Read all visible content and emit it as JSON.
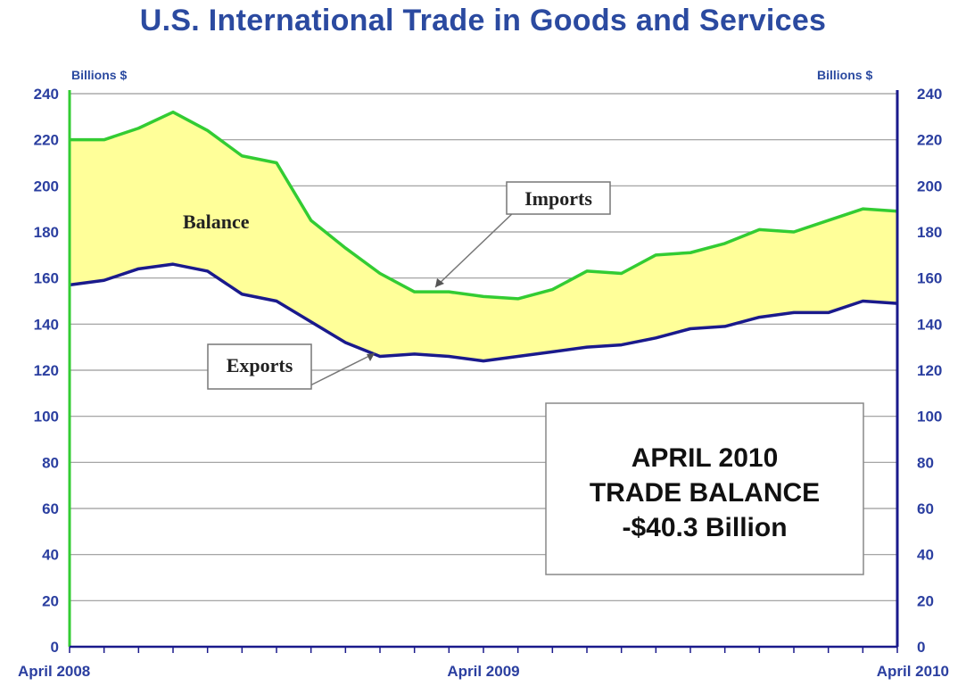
{
  "chart_data": {
    "type": "area",
    "title": "U.S. International Trade in Goods and Services",
    "y_unit_left": "Billions $",
    "y_unit_right": "Billions $",
    "ylim": [
      0,
      240
    ],
    "yticks": [
      "0",
      "20",
      "40",
      "60",
      "80",
      "100",
      "120",
      "140",
      "160",
      "180",
      "200",
      "220",
      "240"
    ],
    "x_tick_labels": [
      "April 2008",
      "April 2009",
      "April 2010"
    ],
    "x": [
      "Apr 2008",
      "May 2008",
      "Jun 2008",
      "Jul 2008",
      "Aug 2008",
      "Sep 2008",
      "Oct 2008",
      "Nov 2008",
      "Dec 2008",
      "Jan 2009",
      "Feb 2009",
      "Mar 2009",
      "Apr 2009",
      "May 2009",
      "Jun 2009",
      "Jul 2009",
      "Aug 2009",
      "Sep 2009",
      "Oct 2009",
      "Nov 2009",
      "Dec 2009",
      "Jan 2010",
      "Feb 2010",
      "Mar 2010",
      "Apr 2010"
    ],
    "series": [
      {
        "name": "Imports",
        "color": "#33cc33",
        "values": [
          220,
          220,
          225,
          232,
          224,
          213,
          210,
          185,
          173,
          162,
          154,
          154,
          152,
          151,
          155,
          163,
          162,
          170,
          171,
          175,
          181,
          180,
          185,
          190,
          189
        ]
      },
      {
        "name": "Exports",
        "color": "#1a1a8c",
        "values": [
          157,
          159,
          164,
          166,
          163,
          153,
          150,
          141,
          132,
          126,
          127,
          126,
          124,
          126,
          128,
          130,
          131,
          134,
          138,
          139,
          143,
          145,
          145,
          150,
          149
        ]
      }
    ],
    "fill_between": {
      "label": "Balance",
      "color": "#ffff99"
    },
    "annotations": {
      "imports_label": "Imports",
      "exports_label": "Exports",
      "balance_label": "Balance",
      "note_lines": [
        "APRIL 2010",
        "TRADE BALANCE",
        "-$40.3 Billion"
      ]
    },
    "grid": true
  }
}
